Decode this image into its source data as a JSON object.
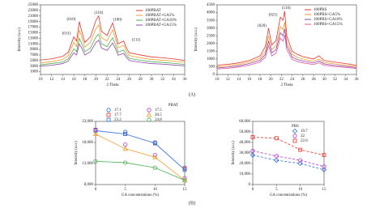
{
  "chart_data": [
    {
      "type": "line",
      "xlabel": "2 Theta",
      "ylabel": "Intensity (a.u.)",
      "x": [
        10,
        12,
        14,
        15,
        16,
        16.5,
        17,
        17.5,
        18,
        19,
        20,
        20.5,
        21,
        22,
        23,
        23.5,
        24,
        25,
        25.5,
        26,
        28,
        30,
        32,
        34,
        36
      ],
      "xlim": [
        10,
        36
      ],
      "xticks": [
        10,
        12,
        14,
        16,
        18,
        20,
        22,
        24,
        26,
        28,
        30,
        32,
        34,
        36
      ],
      "ylim": [
        0,
        25000
      ],
      "yticks": [
        1000,
        3000,
        5000,
        7000,
        9000,
        11000,
        13000,
        15000,
        17000,
        19000,
        21000,
        23000,
        25000
      ],
      "annotations": [
        {
          "text": "(011)"
        },
        {
          "text": "(010)"
        },
        {
          "text": "(110)"
        },
        {
          "text": "(100)"
        },
        {
          "text": "(111)"
        }
      ],
      "series": [
        {
          "name": "100PBAT",
          "color": "#e8332a",
          "values": [
            5200,
            5600,
            6500,
            8000,
            13500,
            12000,
            19000,
            15000,
            11500,
            13500,
            19500,
            21000,
            15500,
            14000,
            18500,
            15000,
            11000,
            12000,
            9500,
            7800,
            7000,
            6300,
            6000,
            5600,
            5000
          ]
        },
        {
          "name": "100PBAT+GA5%",
          "color": "#f39c2a",
          "values": [
            4200,
            4600,
            5400,
            6800,
            11500,
            10000,
            16000,
            13000,
            9800,
            11500,
            16500,
            17800,
            13200,
            12000,
            16000,
            13000,
            9500,
            10500,
            8300,
            6800,
            6000,
            5400,
            5100,
            4800,
            4300
          ]
        },
        {
          "name": "100PBAT+GA10%",
          "color": "#4caf50",
          "values": [
            3500,
            3900,
            4500,
            5600,
            9200,
            8200,
            13000,
            10800,
            8200,
            9500,
            13500,
            14500,
            11000,
            10000,
            13200,
            10800,
            8000,
            8800,
            7000,
            5800,
            5100,
            4600,
            4300,
            4000,
            3600
          ]
        },
        {
          "name": "100PBAT+GA15%",
          "color": "#8e44ad",
          "values": [
            3000,
            3300,
            3900,
            4800,
            7800,
            7000,
            11000,
            9200,
            7000,
            8200,
            11500,
            12300,
            9500,
            8600,
            11300,
            9300,
            6900,
            7600,
            6100,
            5000,
            4400,
            3900,
            3700,
            3400,
            3100
          ]
        }
      ]
    },
    {
      "type": "line",
      "xlabel": "2 Theta",
      "ylabel": "Intensity (a.u.)",
      "x": [
        10,
        12,
        14,
        16,
        18,
        19,
        19.6,
        20.2,
        21,
        21.8,
        22.3,
        22.6,
        23,
        24,
        25,
        26,
        28,
        29,
        30,
        32,
        34,
        36
      ],
      "xlim": [
        10,
        36
      ],
      "xticks": [
        10,
        12,
        14,
        16,
        18,
        20,
        22,
        24,
        26,
        28,
        30,
        32,
        34,
        36
      ],
      "ylim": [
        0,
        4500
      ],
      "yticks": [
        0,
        500,
        1000,
        1500,
        2000,
        2500,
        3000,
        3500,
        4000,
        4500
      ],
      "annotations": [
        {
          "text": "(020)"
        },
        {
          "text": "(021)"
        },
        {
          "text": "(110)"
        }
      ],
      "series": [
        {
          "name": "100PBS",
          "color": "#e8332a",
          "values": [
            600,
            650,
            750,
            900,
            1200,
            1800,
            3000,
            1900,
            2200,
            3700,
            3500,
            4100,
            2500,
            1500,
            1300,
            1150,
            1000,
            1200,
            900,
            800,
            700,
            600
          ]
        },
        {
          "name": "100PBS+GA5%",
          "color": "#f39c2a",
          "values": [
            500,
            550,
            650,
            800,
            1050,
            1500,
            2500,
            1600,
            1850,
            3100,
            2900,
            3400,
            2100,
            1300,
            1100,
            1000,
            850,
            1000,
            780,
            680,
            600,
            520
          ]
        },
        {
          "name": "100PBS+GA10%",
          "color": "#8e44ad",
          "values": [
            420,
            470,
            560,
            700,
            920,
            1300,
            2150,
            1400,
            1600,
            2700,
            2500,
            2950,
            1850,
            1120,
            960,
            870,
            740,
            870,
            680,
            590,
            520,
            450
          ]
        },
        {
          "name": "100PBS+GA15%",
          "color": "#e0559b",
          "values": [
            360,
            400,
            480,
            600,
            800,
            1120,
            1850,
            1200,
            1380,
            2350,
            2150,
            2550,
            1600,
            970,
            830,
            750,
            640,
            750,
            590,
            510,
            450,
            390
          ]
        }
      ]
    },
    {
      "type": "scatter",
      "xlabel": "GA concentrations (%)",
      "ylabel": "Intensity (a.u.)",
      "legend_title": "PBAT",
      "x": [
        0,
        5,
        10,
        15
      ],
      "xlim": [
        0,
        15
      ],
      "xticks": [
        0,
        5,
        10,
        15
      ],
      "ylim": [
        8000,
        23000
      ],
      "yticks": [
        {
          "value": 8000,
          "label": "8,000"
        },
        {
          "value": 13000,
          "label": "13,000"
        },
        {
          "value": 18000,
          "label": "18,000"
        },
        {
          "value": 23000,
          "label": "23,000"
        }
      ],
      "trendline": "solid",
      "series": [
        {
          "name": "17.1",
          "color": "#2e6fd8",
          "marker": "circle",
          "values": [
            21000,
            20500,
            18000,
            12000
          ]
        },
        {
          "name": "17.7",
          "color": "#e8332a",
          "marker": "square",
          "values": [
            21000,
            20000,
            17800,
            11800
          ]
        },
        {
          "name": "23.2",
          "color": "#2e6fd8",
          "marker": "square",
          "values": [
            20800,
            20000,
            17800,
            11500
          ],
          "trendline": true
        },
        {
          "name": "17.5",
          "color": "#b03ad0",
          "marker": "circle",
          "values": [
            21000,
            17500,
            15000,
            9500
          ]
        },
        {
          "name": "20.5",
          "color": "#f39c2a",
          "marker": "triangle",
          "values": [
            20000,
            16500,
            14500,
            9000
          ],
          "trendline": true
        },
        {
          "name": "24.8",
          "color": "#4caf50",
          "marker": "circle",
          "values": [
            13500,
            13200,
            12000,
            9000
          ],
          "trendline": true
        }
      ]
    },
    {
      "type": "scatter",
      "xlabel": "GA concentrations (%)",
      "ylabel": "Intensity (a.u.)",
      "legend_title": "PBS",
      "x": [
        0,
        5,
        10,
        15
      ],
      "xlim": [
        0,
        15
      ],
      "xticks": [
        0,
        5,
        10,
        15
      ],
      "ylim": [
        0,
        60000
      ],
      "yticks": [
        0,
        {
          "value": 10000,
          "label": "10,000"
        },
        {
          "value": 20000,
          "label": "20,000"
        },
        {
          "value": 30000,
          "label": "30,000"
        },
        {
          "value": 40000,
          "label": "40,000"
        },
        {
          "value": 50000,
          "label": "50,000"
        },
        {
          "value": 60000,
          "label": "60,000"
        }
      ],
      "trendline": "dashed",
      "series": [
        {
          "name": "19.7",
          "color": "#2e6fd8",
          "marker": "diamond",
          "values": [
            28000,
            23000,
            20000,
            14000
          ],
          "trendline": true
        },
        {
          "name": "22",
          "color": "#b03ad0",
          "marker": "circle",
          "values": [
            32000,
            27000,
            23000,
            17000
          ],
          "trendline": true
        },
        {
          "name": "22.6",
          "color": "#e8332a",
          "marker": "square",
          "values": [
            45000,
            44000,
            33000,
            28000
          ],
          "trendline": true
        }
      ]
    }
  ],
  "panel_labels": [
    "(A)",
    "(B)"
  ]
}
